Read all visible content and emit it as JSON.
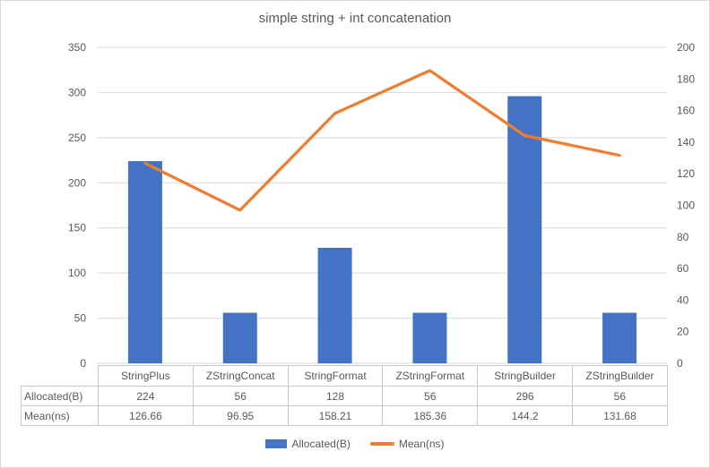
{
  "title": "simple string + int concatenation",
  "chart_data": {
    "type": "combo",
    "title": "simple string + int concatenation",
    "categories": [
      "StringPlus",
      "ZStringConcat",
      "StringFormat",
      "ZStringFormat",
      "StringBuilder",
      "ZStringBuilder"
    ],
    "series": [
      {
        "name": "Allocated(B)",
        "type": "bar",
        "axis": "left",
        "color": "#4472C4",
        "values": [
          224,
          56,
          128,
          56,
          296,
          56
        ]
      },
      {
        "name": "Mean(ns)",
        "type": "line",
        "axis": "right",
        "color": "#ED7D31",
        "values": [
          126.66,
          96.95,
          158.21,
          185.36,
          144.2,
          131.68
        ]
      }
    ],
    "left_axis": {
      "min": 0,
      "max": 350,
      "step": 50,
      "ticks": [
        0,
        50,
        100,
        150,
        200,
        250,
        300,
        350
      ]
    },
    "right_axis": {
      "min": 0,
      "max": 200,
      "step": 20,
      "ticks": [
        0,
        20,
        40,
        60,
        80,
        100,
        120,
        140,
        160,
        180,
        200
      ]
    },
    "grid": true,
    "legend_position": "bottom",
    "data_table_shown": true
  },
  "colors": {
    "bar": "#4472C4",
    "line": "#ED7D31",
    "grid": "#D9D9D9",
    "axis_text": "#595959",
    "table_border": "#C9C9C9",
    "frame_border": "#D9D9D9"
  }
}
